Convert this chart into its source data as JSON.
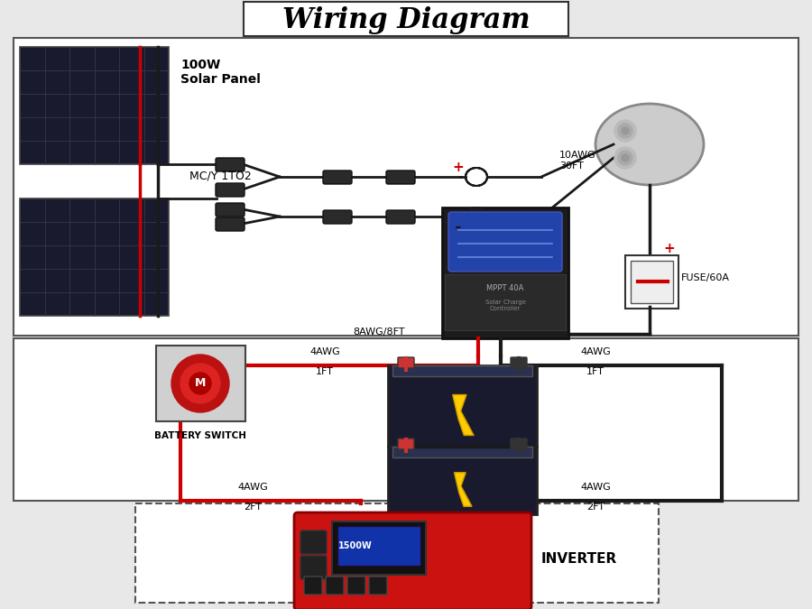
{
  "title": "Wiring Diagram",
  "bg_color": "#e8e8e8",
  "wire_red": "#cc0000",
  "wire_black": "#1a1a1a",
  "box_bg": "#ffffff",
  "labels": {
    "solar_panel": "100W\nSolar Panel",
    "mcy": "MC/Y 1TO2",
    "fuse": "FUSE/60A",
    "battery_switch": "BATTERY SWITCH",
    "inverter": "INVERTER",
    "wire1": "10AWG\n30FT",
    "wire2": "8AWG/8FT",
    "wire3_top": "4AWG",
    "wire3_bot": "1FT",
    "wire4_top": "4AWG",
    "wire4_bot": "1FT",
    "wire5_top": "4AWG",
    "wire5_bot": "2FT",
    "wire6_top": "4AWG",
    "wire6_bot": "2FT",
    "plus": "+",
    "minus": "-"
  }
}
